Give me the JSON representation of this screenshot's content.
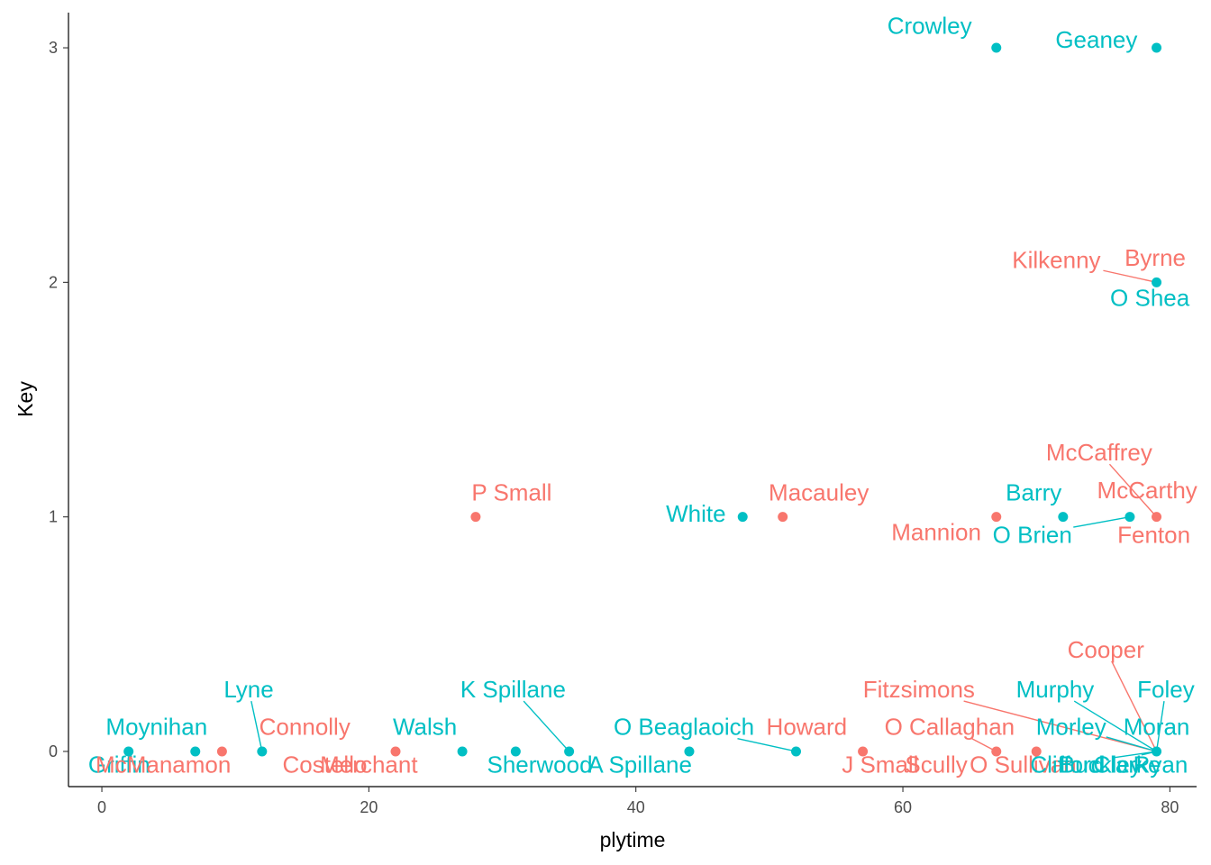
{
  "chart_data": {
    "type": "scatter",
    "title": "",
    "xlabel": "plytime",
    "ylabel": "Key",
    "xlim": [
      -2.5,
      82
    ],
    "ylim": [
      -0.15,
      3.15
    ],
    "x_ticks": [
      0,
      20,
      40,
      60,
      80
    ],
    "y_ticks": [
      0,
      1,
      2,
      3
    ],
    "grid": false,
    "legend": "none",
    "colors": {
      "teal": "#00BFC4",
      "coral": "#F8766D"
    },
    "points": [
      {
        "x": 67,
        "y": 3,
        "color": "teal"
      },
      {
        "x": 79,
        "y": 3,
        "color": "teal"
      },
      {
        "x": 79,
        "y": 2,
        "color": "teal"
      },
      {
        "x": 28,
        "y": 1,
        "color": "coral"
      },
      {
        "x": 48,
        "y": 1,
        "color": "teal"
      },
      {
        "x": 51,
        "y": 1,
        "color": "coral"
      },
      {
        "x": 67,
        "y": 1,
        "color": "coral"
      },
      {
        "x": 72,
        "y": 1,
        "color": "teal"
      },
      {
        "x": 77,
        "y": 1,
        "color": "teal"
      },
      {
        "x": 79,
        "y": 1,
        "color": "coral"
      },
      {
        "x": 2,
        "y": 0,
        "color": "teal"
      },
      {
        "x": 7,
        "y": 0,
        "color": "teal"
      },
      {
        "x": 9,
        "y": 0,
        "color": "coral"
      },
      {
        "x": 12,
        "y": 0,
        "color": "teal"
      },
      {
        "x": 22,
        "y": 0,
        "color": "coral"
      },
      {
        "x": 27,
        "y": 0,
        "color": "teal"
      },
      {
        "x": 31,
        "y": 0,
        "color": "teal"
      },
      {
        "x": 35,
        "y": 0,
        "color": "teal"
      },
      {
        "x": 44,
        "y": 0,
        "color": "teal"
      },
      {
        "x": 52,
        "y": 0,
        "color": "teal"
      },
      {
        "x": 57,
        "y": 0,
        "color": "coral"
      },
      {
        "x": 67,
        "y": 0,
        "color": "coral"
      },
      {
        "x": 70,
        "y": 0,
        "color": "coral"
      },
      {
        "x": 79,
        "y": 0,
        "color": "teal"
      }
    ],
    "labels": [
      {
        "text": "Crowley",
        "x": 67,
        "y": 3,
        "lx": 62.0,
        "ly": 3.06,
        "color": "teal",
        "anchor": "middle"
      },
      {
        "text": "Geaney",
        "x": 79,
        "y": 3,
        "lx": 74.5,
        "ly": 3.0,
        "color": "teal",
        "anchor": "middle"
      },
      {
        "text": "Kilkenny",
        "x": 79,
        "y": 2,
        "lx": 71.5,
        "ly": 2.06,
        "color": "coral",
        "anchor": "middle",
        "seg": true
      },
      {
        "text": "Byrne",
        "x": 79,
        "y": 2,
        "lx": 78.9,
        "ly": 2.07,
        "color": "coral",
        "anchor": "middle"
      },
      {
        "text": "O Shea",
        "x": 79,
        "y": 2,
        "lx": 78.5,
        "ly": 1.9,
        "color": "teal",
        "anchor": "middle"
      },
      {
        "text": "McCaffrey",
        "x": 79,
        "y": 1,
        "lx": 74.7,
        "ly": 1.24,
        "color": "coral",
        "anchor": "middle",
        "seg": true
      },
      {
        "text": "P Small",
        "x": 28,
        "y": 1,
        "lx": 30.7,
        "ly": 1.07,
        "color": "coral",
        "anchor": "middle"
      },
      {
        "text": "White",
        "x": 48,
        "y": 1,
        "lx": 44.5,
        "ly": 0.98,
        "color": "teal",
        "anchor": "middle"
      },
      {
        "text": "Macauley",
        "x": 51,
        "y": 1,
        "lx": 53.7,
        "ly": 1.07,
        "color": "coral",
        "anchor": "middle"
      },
      {
        "text": "Barry",
        "x": 72,
        "y": 1,
        "lx": 69.8,
        "ly": 1.07,
        "color": "teal",
        "anchor": "middle"
      },
      {
        "text": "McCarthy",
        "x": 79,
        "y": 1,
        "lx": 78.3,
        "ly": 1.08,
        "color": "coral",
        "anchor": "middle"
      },
      {
        "text": "Mannion",
        "x": 67,
        "y": 1,
        "lx": 62.5,
        "ly": 0.9,
        "color": "coral",
        "anchor": "middle"
      },
      {
        "text": "O Brien",
        "x": 77,
        "y": 1,
        "lx": 69.7,
        "ly": 0.89,
        "color": "teal",
        "anchor": "middle",
        "seg": true
      },
      {
        "text": "Fenton",
        "x": 79,
        "y": 1,
        "lx": 78.8,
        "ly": 0.89,
        "color": "coral",
        "anchor": "middle"
      },
      {
        "text": "Cooper",
        "x": 79,
        "y": 0,
        "lx": 75.2,
        "ly": 0.4,
        "color": "coral",
        "anchor": "middle",
        "seg": true
      },
      {
        "text": "Lyne",
        "x": 12,
        "y": 0,
        "lx": 11.0,
        "ly": 0.23,
        "color": "teal",
        "anchor": "middle",
        "seg": true
      },
      {
        "text": "K Spillane",
        "x": 35,
        "y": 0,
        "lx": 30.8,
        "ly": 0.23,
        "color": "teal",
        "anchor": "middle",
        "seg": true
      },
      {
        "text": "Fitzsimons",
        "x": 79,
        "y": 0,
        "lx": 61.2,
        "ly": 0.23,
        "color": "coral",
        "anchor": "middle",
        "seg": true
      },
      {
        "text": "Murphy",
        "x": 79,
        "y": 0,
        "lx": 71.4,
        "ly": 0.23,
        "color": "teal",
        "anchor": "middle",
        "seg": true
      },
      {
        "text": "Foley",
        "x": 79,
        "y": 0,
        "lx": 79.7,
        "ly": 0.23,
        "color": "teal",
        "anchor": "middle",
        "seg": true
      },
      {
        "text": "Moynihan",
        "x": 2,
        "y": 0,
        "lx": 4.1,
        "ly": 0.07,
        "color": "teal",
        "anchor": "middle"
      },
      {
        "text": "Connolly",
        "x": 9,
        "y": 0,
        "lx": 15.2,
        "ly": 0.07,
        "color": "coral",
        "anchor": "middle"
      },
      {
        "text": "Walsh",
        "x": 27,
        "y": 0,
        "lx": 24.2,
        "ly": 0.07,
        "color": "teal",
        "anchor": "middle"
      },
      {
        "text": "O Beaglaoich",
        "x": 52,
        "y": 0,
        "lx": 43.6,
        "ly": 0.07,
        "color": "teal",
        "anchor": "middle",
        "seg": true
      },
      {
        "text": "Howard",
        "x": 57,
        "y": 0,
        "lx": 52.8,
        "ly": 0.07,
        "color": "coral",
        "anchor": "middle"
      },
      {
        "text": "O Callaghan",
        "x": 67,
        "y": 0,
        "lx": 63.5,
        "ly": 0.07,
        "color": "coral",
        "anchor": "middle",
        "seg": true
      },
      {
        "text": "Morley",
        "x": 79,
        "y": 0,
        "lx": 72.6,
        "ly": 0.07,
        "color": "teal",
        "anchor": "middle",
        "seg": true
      },
      {
        "text": "Moran",
        "x": 79,
        "y": 0,
        "lx": 79.0,
        "ly": 0.07,
        "color": "teal",
        "anchor": "middle"
      },
      {
        "text": "Griffin",
        "x": 2,
        "y": 0,
        "lx": 1.3,
        "ly": -0.09,
        "color": "teal",
        "anchor": "middle"
      },
      {
        "text": "McManamon",
        "x": 9,
        "y": 0,
        "lx": 4.6,
        "ly": -0.09,
        "color": "coral",
        "anchor": "middle"
      },
      {
        "text": "Costello",
        "x": 12,
        "y": 0,
        "lx": 16.7,
        "ly": -0.09,
        "color": "coral",
        "anchor": "middle"
      },
      {
        "text": "Merchant",
        "x": 22,
        "y": 0,
        "lx": 20.0,
        "ly": -0.09,
        "color": "coral",
        "anchor": "middle"
      },
      {
        "text": "Sherwood",
        "x": 31,
        "y": 0,
        "lx": 32.8,
        "ly": -0.09,
        "color": "teal",
        "anchor": "middle"
      },
      {
        "text": "A Spillane",
        "x": 35,
        "y": 0,
        "lx": 40.3,
        "ly": -0.09,
        "color": "teal",
        "anchor": "middle"
      },
      {
        "text": "J Small",
        "x": 57,
        "y": 0,
        "lx": 58.3,
        "ly": -0.09,
        "color": "coral",
        "anchor": "middle"
      },
      {
        "text": "Scully",
        "x": 67,
        "y": 0,
        "lx": 62.5,
        "ly": -0.09,
        "color": "coral",
        "anchor": "middle"
      },
      {
        "text": "O Sullivan",
        "x": 70,
        "y": 0,
        "lx": 69.0,
        "ly": -0.09,
        "color": "coral",
        "anchor": "middle",
        "seg": true
      },
      {
        "text": "Clifford",
        "x": 79,
        "y": 0,
        "lx": 72.3,
        "ly": -0.09,
        "color": "teal",
        "anchor": "middle",
        "seg": true
      },
      {
        "text": "Buckley",
        "x": 79,
        "y": 0,
        "lx": 74.8,
        "ly": -0.09,
        "color": "teal",
        "anchor": "middle",
        "seg": true
      },
      {
        "text": "Clarke",
        "x": 79,
        "y": 0,
        "lx": 76.8,
        "ly": -0.09,
        "color": "teal",
        "anchor": "middle",
        "seg": true
      },
      {
        "text": "Ryan",
        "x": 79,
        "y": 0,
        "lx": 79.3,
        "ly": -0.09,
        "color": "teal",
        "anchor": "middle",
        "seg": true
      }
    ]
  }
}
